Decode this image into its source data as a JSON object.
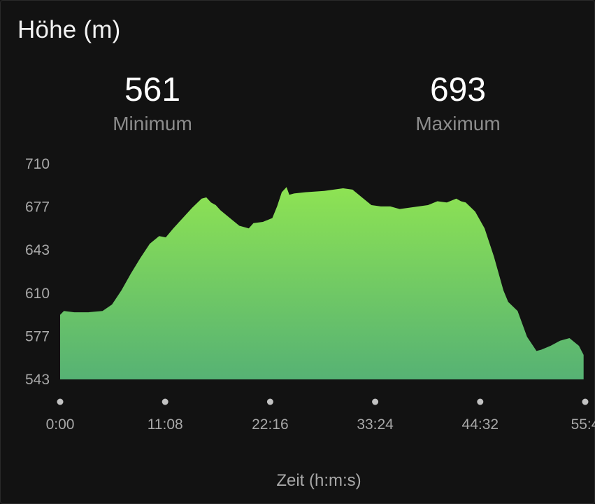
{
  "header": {
    "title": "Höhe (m)"
  },
  "stats": {
    "minimum_value": "561",
    "minimum_label": "Minimum",
    "maximum_value": "693",
    "maximum_label": "Maximum"
  },
  "colors": {
    "background": "#121212",
    "fill_top": "#8ee353",
    "fill_bottom": "#56b274",
    "text_muted": "#a8a8a8",
    "tick_dot": "#c2c2c2"
  },
  "chart_data": {
    "type": "area",
    "title": "Höhe (m)",
    "xlabel": "Zeit (h:m:s)",
    "ylabel": "",
    "ylim": [
      543,
      710
    ],
    "yticks": [
      "710",
      "677",
      "643",
      "610",
      "577",
      "543"
    ],
    "xticks": [
      "0:00",
      "11:08",
      "22:16",
      "33:24",
      "44:32",
      "55:4"
    ],
    "xlim_minutes": [
      0,
      55.67
    ],
    "grid": false,
    "legend": "none",
    "x_minutes": [
      0,
      0.4,
      1.5,
      3,
      4.5,
      5.5,
      6.5,
      7.5,
      8.5,
      9.5,
      10.5,
      11.2,
      12,
      13,
      14,
      15,
      15.5,
      16,
      16.5,
      17,
      18,
      19,
      20,
      20.5,
      21.5,
      22.5,
      23,
      23.5,
      24,
      24.3,
      24.8,
      26,
      28,
      30,
      31,
      32,
      33,
      34,
      35,
      36,
      37,
      38,
      39,
      40,
      41,
      42,
      42.5,
      43,
      44,
      45,
      46,
      47,
      47.5,
      48.5,
      49.5,
      50.5,
      51,
      52,
      53,
      54,
      54.5,
      55,
      55.5
    ],
    "values": [
      593,
      596,
      595,
      595,
      596,
      601,
      612,
      625,
      637,
      648,
      654,
      653,
      660,
      668,
      676,
      683,
      684,
      680,
      678,
      674,
      668,
      662,
      660,
      664,
      665,
      668,
      677,
      688,
      692,
      686,
      687,
      688,
      689,
      691,
      690,
      684,
      678,
      677,
      677,
      675,
      676,
      677,
      678,
      681,
      680,
      683,
      681,
      680,
      673,
      660,
      638,
      612,
      603,
      596,
      576,
      565,
      566,
      569,
      573,
      575,
      572,
      569,
      562
    ]
  }
}
